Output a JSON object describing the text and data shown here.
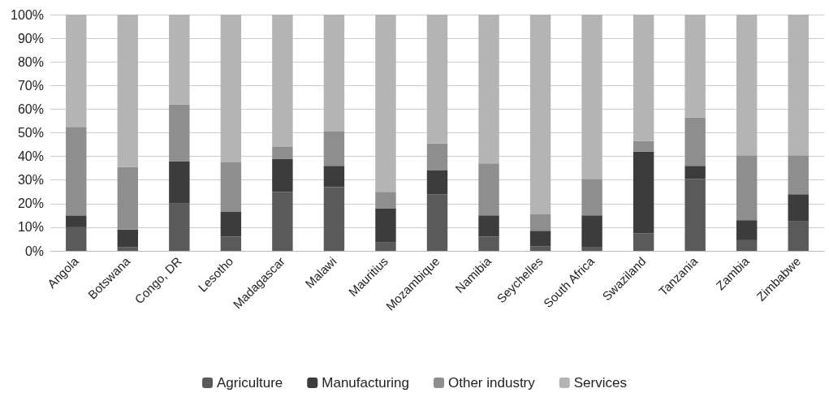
{
  "chart_data": {
    "type": "bar",
    "stacked": true,
    "categories": [
      "Angola",
      "Botswana",
      "Congo, DR",
      "Lesotho",
      "Madagascar",
      "Malawi",
      "Mauritius",
      "Mozambique",
      "Namibia",
      "Seychelles",
      "South Africa",
      "Swaziland",
      "Tanzania",
      "Zambia",
      "Zimbabwe"
    ],
    "series": [
      {
        "name": "Agriculture",
        "color": "#5a5a5a",
        "values": [
          10,
          1.5,
          20,
          6,
          25,
          27,
          3.5,
          24,
          6,
          2,
          1.5,
          7.5,
          30.5,
          4.5,
          12.5
        ]
      },
      {
        "name": "Manufacturing",
        "color": "#3c3c3c",
        "values": [
          5,
          7.5,
          18,
          10.5,
          14,
          9,
          14.5,
          10,
          9,
          6.5,
          13.5,
          34.5,
          5.5,
          8.5,
          11.5
        ]
      },
      {
        "name": "Other industry",
        "color": "#8e8e8e",
        "values": [
          37.5,
          26.5,
          24,
          21,
          5,
          14.5,
          7,
          11.5,
          22,
          7,
          15.5,
          4.5,
          20.5,
          27.5,
          16.5
        ]
      },
      {
        "name": "Services",
        "color": "#b4b4b4",
        "values": [
          47.5,
          64.5,
          38,
          62.5,
          56,
          49.5,
          75,
          54.5,
          63,
          84.5,
          69.5,
          53.5,
          43.5,
          59.5,
          59.5
        ]
      }
    ],
    "ylim": [
      0,
      100
    ],
    "yticks": [
      {
        "value": 0,
        "label": "0%"
      },
      {
        "value": 10,
        "label": "10%"
      },
      {
        "value": 20,
        "label": "20%"
      },
      {
        "value": 30,
        "label": "30%"
      },
      {
        "value": 40,
        "label": "40%"
      },
      {
        "value": 50,
        "label": "50%"
      },
      {
        "value": 60,
        "label": "60%"
      },
      {
        "value": 70,
        "label": "70%"
      },
      {
        "value": 80,
        "label": "80%"
      },
      {
        "value": 90,
        "label": "90%"
      },
      {
        "value": 100,
        "label": "100%"
      }
    ],
    "grid": "y",
    "legend": "bottom"
  }
}
